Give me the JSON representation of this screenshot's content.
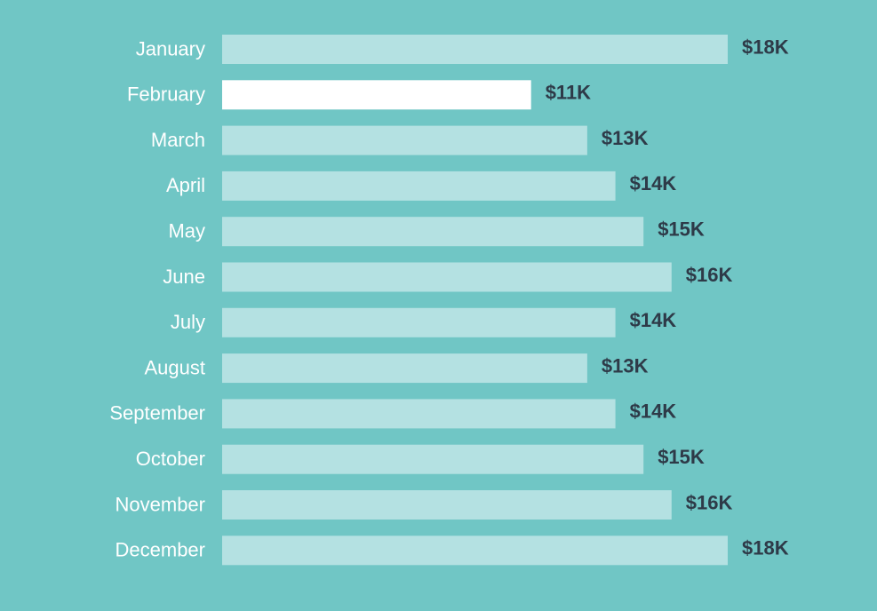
{
  "chart_data": {
    "type": "bar",
    "orientation": "horizontal",
    "categories": [
      "January",
      "February",
      "March",
      "April",
      "May",
      "June",
      "July",
      "August",
      "September",
      "October",
      "November",
      "December"
    ],
    "values": [
      18,
      11,
      13,
      14,
      15,
      16,
      14,
      13,
      14,
      15,
      16,
      18
    ],
    "value_labels": [
      "$18K",
      "$11K",
      "$13K",
      "$14K",
      "$15K",
      "$16K",
      "$14K",
      "$13K",
      "$14K",
      "$15K",
      "$16K",
      "$18K"
    ],
    "unit": "$K",
    "title": "",
    "xlabel": "",
    "ylabel": "",
    "xlim": [
      0,
      18
    ],
    "grid": false,
    "highlighted_category": "February",
    "colors": {
      "background": "#70c6c5",
      "bar": "#b4e1e2",
      "highlight_bar": "#ffffff",
      "category_label": "#ffffff",
      "value_label": "#2e3a48"
    }
  }
}
